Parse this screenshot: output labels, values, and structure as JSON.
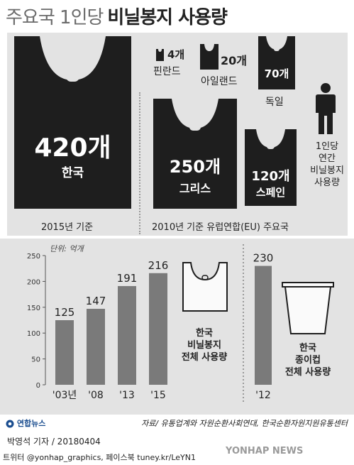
{
  "title_light": "주요국 1인당",
  "title_bold": "비닐봉지 사용량",
  "bags": {
    "korea": {
      "value": "420개",
      "name": "한국"
    },
    "greece": {
      "value": "250개",
      "name": "그리스"
    },
    "spain": {
      "value": "120개",
      "name": "스페인"
    },
    "germany": {
      "value": "70개",
      "name": "독일"
    },
    "ireland": {
      "value": "20개",
      "name": "아일랜드"
    },
    "finland": {
      "value": "4개",
      "name": "핀란드"
    }
  },
  "per_capita_note": [
    "1인당",
    "연간",
    "비닐봉지",
    "사용량"
  ],
  "caption_2015": "2015년 기준",
  "caption_2010": "2010년 기준 유럽연합(EU) 주요국",
  "unit_label": "단위: 억개",
  "plastic_label": [
    "한국",
    "비닐봉지",
    "전체 사용량"
  ],
  "paper_label": [
    "한국",
    "종이컵",
    "전체 사용량"
  ],
  "logo_text": "연합뉴스",
  "source": "자료/ 유통업계와 자원순환사회연대, 한국순환자원지원유통센터",
  "byline": "박영석 기자 / 20180404",
  "social": "트위터 @yonhap_graphics, 페이스북 tuney.kr/LeYN1",
  "watermark": "YONHAP NEWS",
  "colors": {
    "bag": "#1e1e1e",
    "bar": "#7a7a7a",
    "panel": "#e3e3e3",
    "logo": "#1a4d8f"
  },
  "icons": [
    "plastic-bag-icon",
    "paper-cup-icon",
    "person-icon",
    "yonhap-logo-icon"
  ],
  "chart_data": [
    {
      "type": "bar",
      "categories": [
        "'03년",
        "'08",
        "'13",
        "'15"
      ],
      "values": [
        125,
        147,
        191,
        216
      ],
      "xlabel": "",
      "ylabel": "단위: 억개",
      "ylim": [
        0,
        250
      ],
      "yticks": [
        0,
        50,
        100,
        150,
        200,
        250
      ],
      "grid": false
    },
    {
      "type": "bar",
      "categories": [
        "'12"
      ],
      "values": [
        230
      ],
      "ylim": [
        0,
        250
      ]
    }
  ]
}
